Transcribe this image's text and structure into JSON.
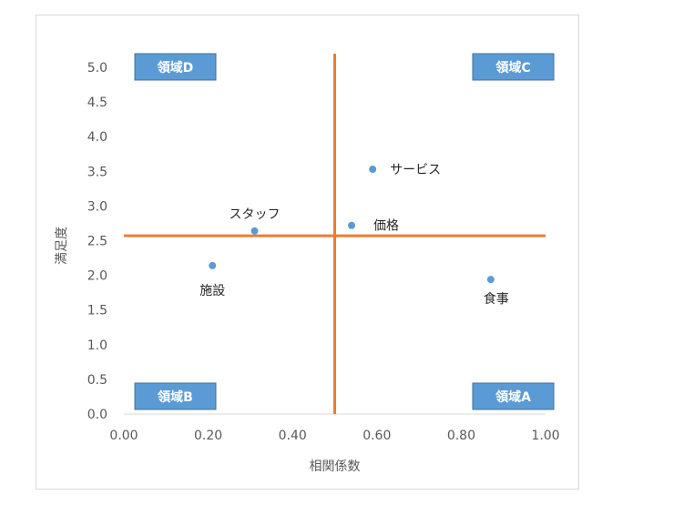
{
  "chart_data": {
    "type": "scatter",
    "xlabel": "相関係数",
    "ylabel": "満足度",
    "xlim": [
      0,
      1
    ],
    "ylim": [
      0,
      5
    ],
    "xticks": [
      "0.00",
      "0.20",
      "0.40",
      "0.60",
      "0.80",
      "1.00"
    ],
    "yticks": [
      "0.0",
      "0.5",
      "1.0",
      "1.5",
      "2.0",
      "2.5",
      "3.0",
      "3.5",
      "4.0",
      "4.5",
      "5.0"
    ],
    "grid": false,
    "points": [
      {
        "label": "サービス",
        "x": 0.59,
        "y": 3.53
      },
      {
        "label": "価格",
        "x": 0.54,
        "y": 2.72
      },
      {
        "label": "スタッフ",
        "x": 0.31,
        "y": 2.64
      },
      {
        "label": "施設",
        "x": 0.21,
        "y": 2.14
      },
      {
        "label": "食事",
        "x": 0.87,
        "y": 1.94
      }
    ],
    "reference_lines": {
      "x": 0.5,
      "y": 2.57
    },
    "quadrants": [
      "領域D",
      "領域C",
      "領域B",
      "領域A"
    ],
    "colors": {
      "points": "#5b9bd5",
      "reference_lines": "#ed7d31",
      "quadrant_box": "#5b9bd5"
    }
  }
}
